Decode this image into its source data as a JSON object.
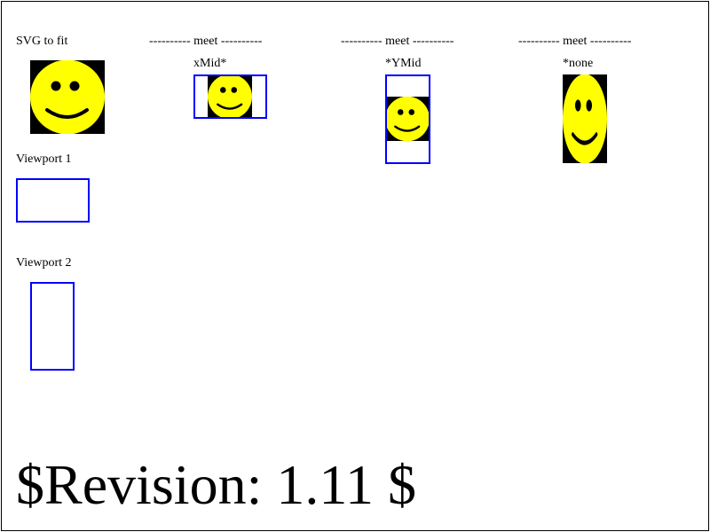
{
  "labels": {
    "svg_to_fit": "SVG to fit",
    "viewport1": "Viewport 1",
    "viewport2": "Viewport 2",
    "meet_1": "---------- meet ----------",
    "meet_2": "---------- meet ----------",
    "meet_3": "---------- meet ----------",
    "xmid": "xMid*",
    "ymid": "*YMid",
    "none": "*none"
  },
  "revision": "$Revision: 1.11 $",
  "colors": {
    "face": "#ffff00",
    "background": "#000000",
    "viewport_border": "#0000ff",
    "features": "#000000"
  }
}
